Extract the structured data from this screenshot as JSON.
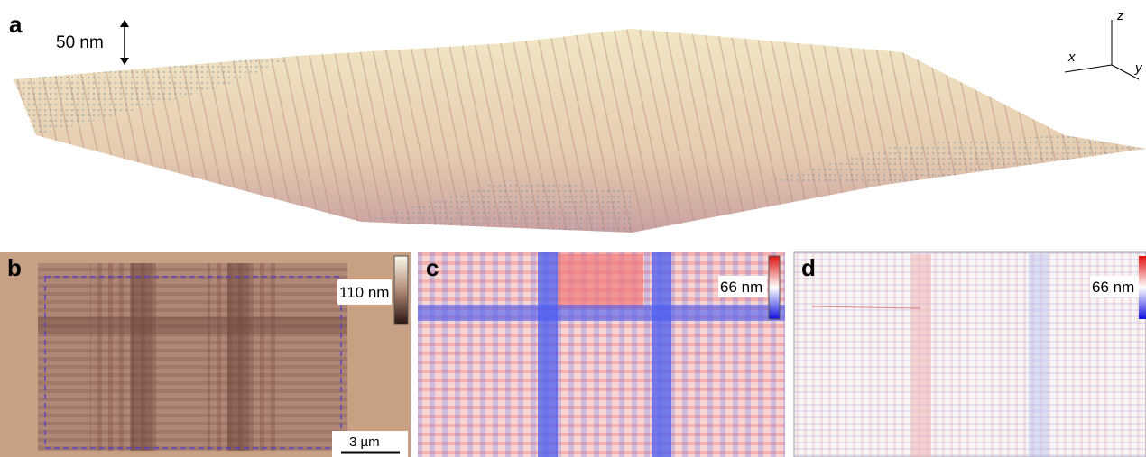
{
  "panels": [
    {
      "label": "a",
      "scale_bar": "50 nm",
      "axes": {
        "z": "z",
        "x": "x",
        "y": "y"
      }
    },
    {
      "label": "b",
      "colorbar_label": "110 nm",
      "scale_bar": "3 µm"
    },
    {
      "label": "c",
      "colorbar_label": "66 nm"
    },
    {
      "label": "d",
      "colorbar_label": "66 nm"
    }
  ]
}
